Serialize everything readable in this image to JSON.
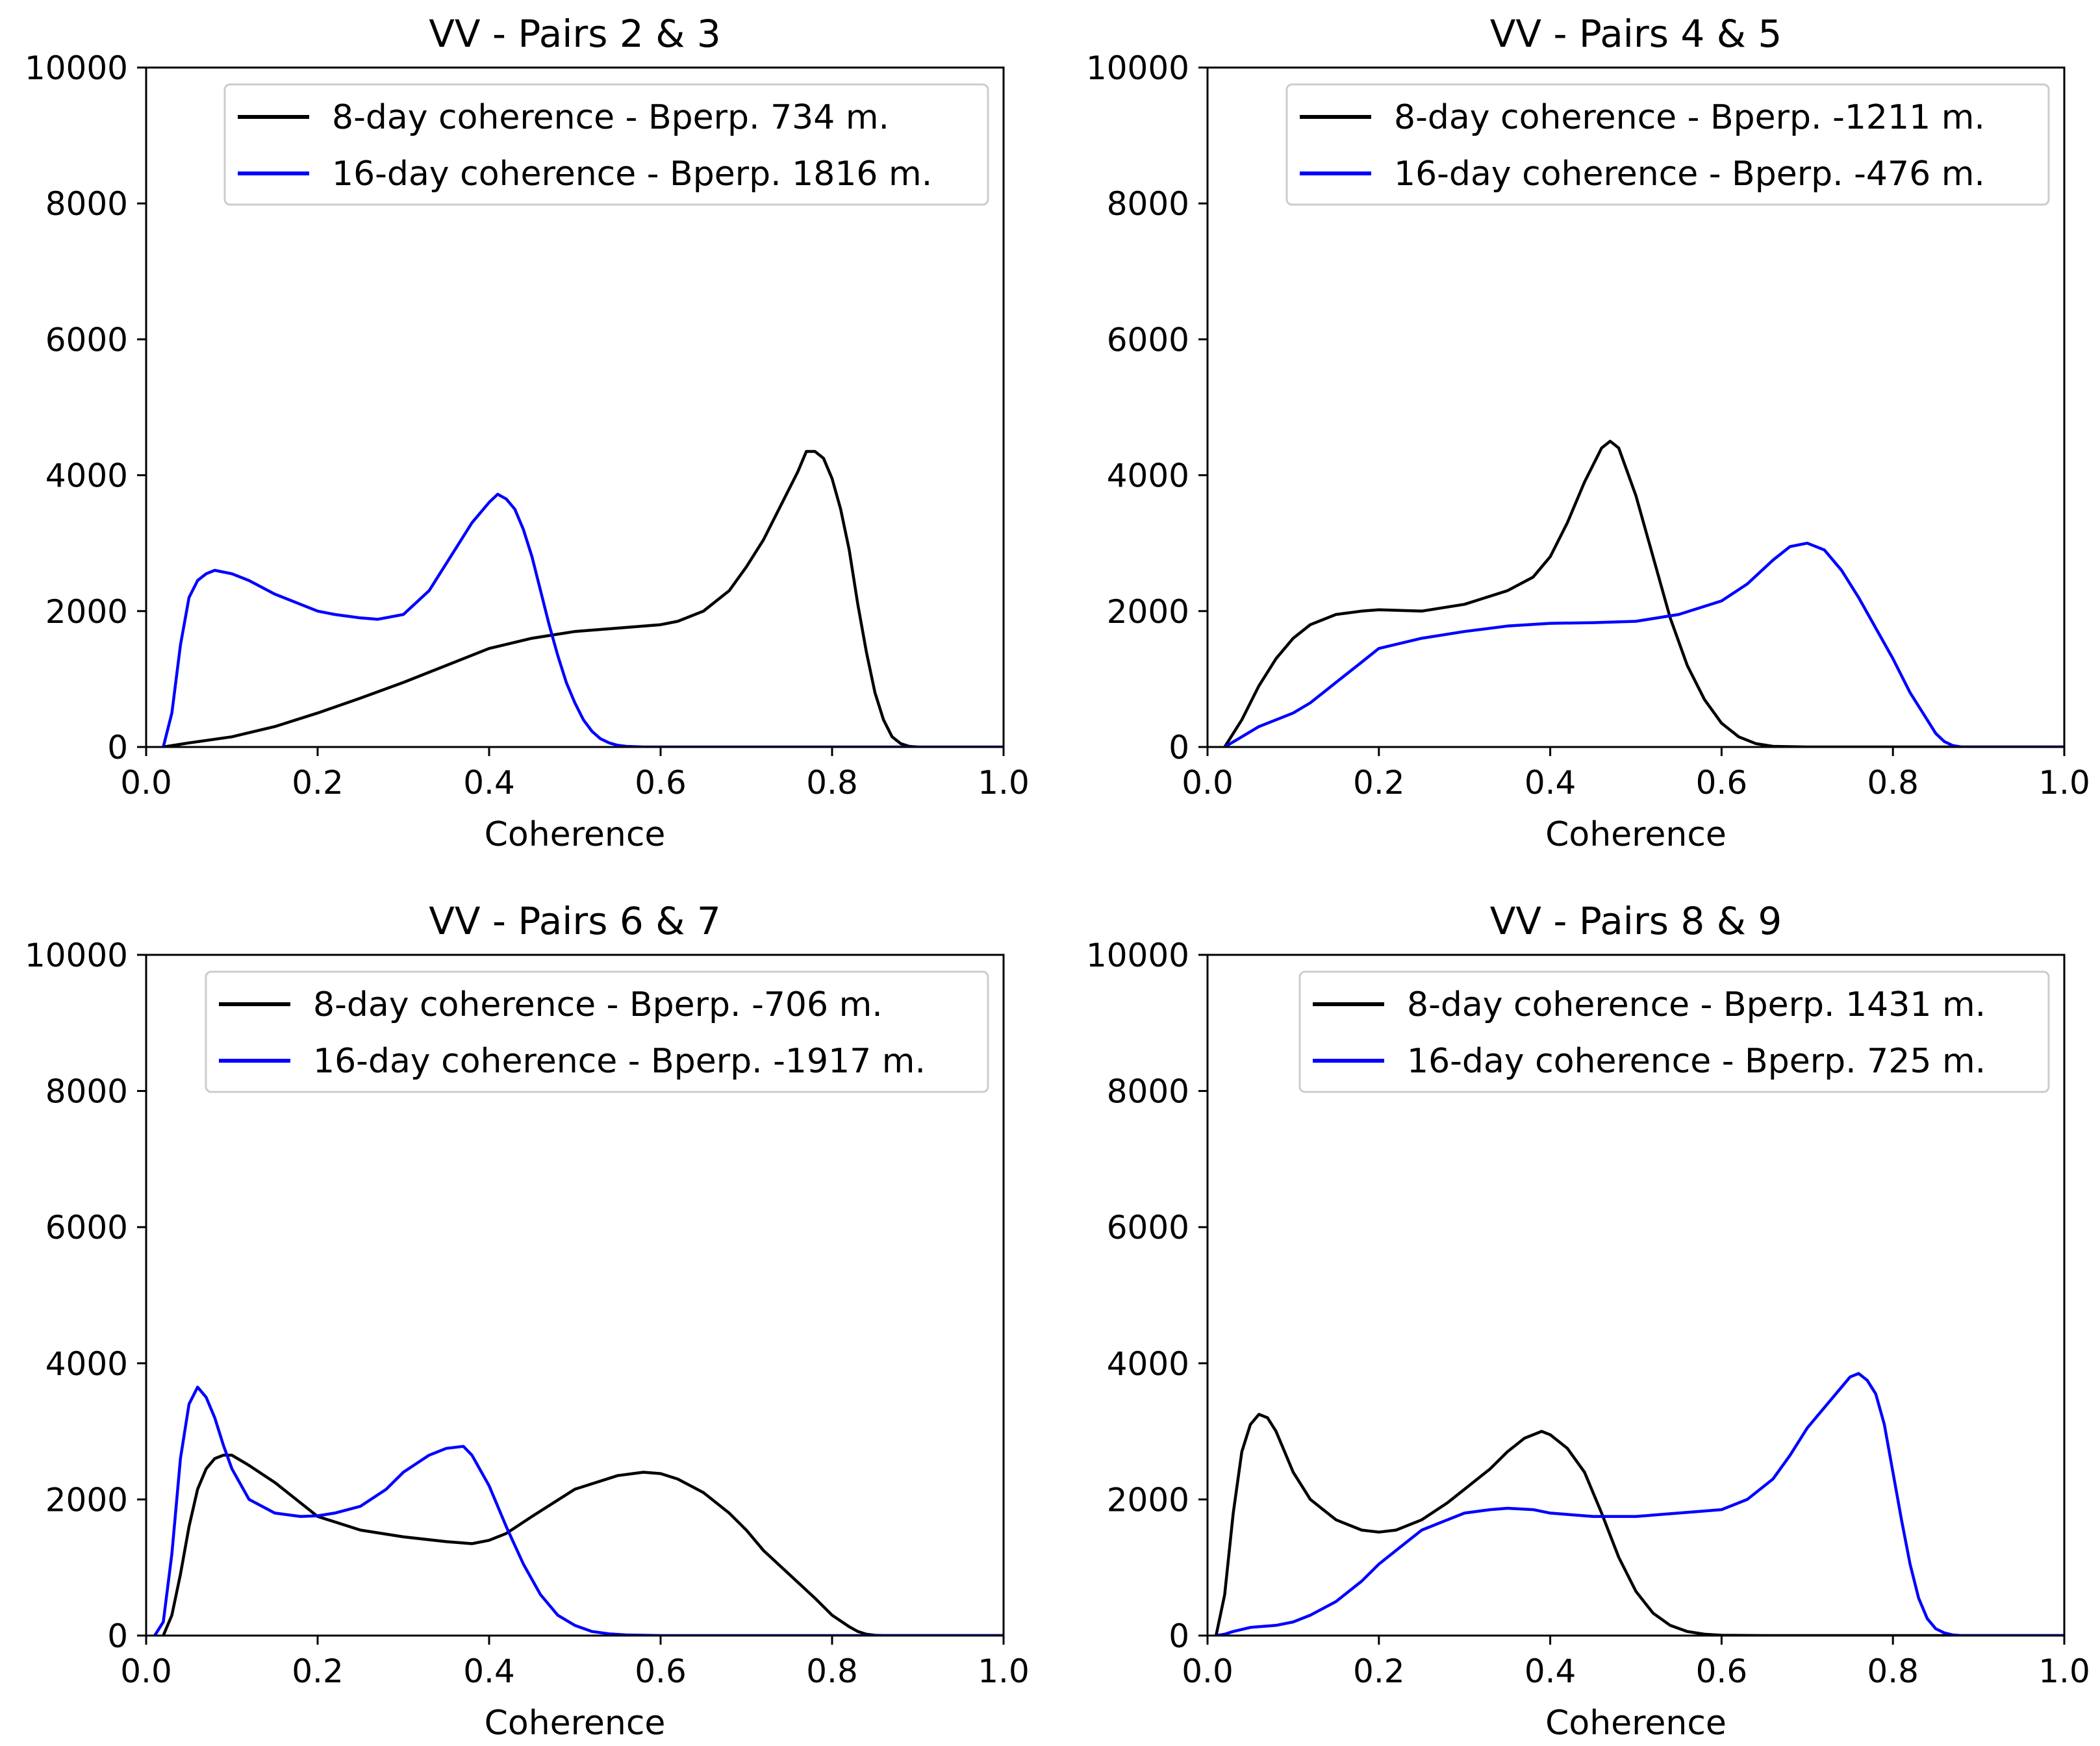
{
  "chart_data": [
    {
      "type": "line",
      "title": "VV  - Pairs 2 & 3",
      "xlabel": "Coherence",
      "ylabel": "",
      "xlim": [
        0.0,
        1.0
      ],
      "ylim": [
        0,
        10000
      ],
      "xticks": [
        "0.0",
        "0.2",
        "0.4",
        "0.6",
        "0.8",
        "1.0"
      ],
      "yticks": [
        "0",
        "2000",
        "4000",
        "6000",
        "8000",
        "10000"
      ],
      "legend_position": "top-right",
      "series": [
        {
          "name": "8-day coherence - Bperp. 734 m.",
          "color": "#000000",
          "x": [
            0.02,
            0.05,
            0.1,
            0.15,
            0.2,
            0.25,
            0.3,
            0.35,
            0.4,
            0.45,
            0.5,
            0.55,
            0.6,
            0.62,
            0.65,
            0.68,
            0.7,
            0.72,
            0.74,
            0.76,
            0.77,
            0.78,
            0.79,
            0.8,
            0.81,
            0.82,
            0.83,
            0.84,
            0.85,
            0.86,
            0.87,
            0.88,
            0.89,
            0.9
          ],
          "y": [
            0,
            60,
            150,
            300,
            500,
            720,
            950,
            1200,
            1450,
            1600,
            1700,
            1750,
            1800,
            1850,
            2000,
            2300,
            2650,
            3050,
            3550,
            4050,
            4350,
            4350,
            4250,
            3950,
            3500,
            2900,
            2100,
            1400,
            800,
            400,
            150,
            50,
            10,
            0
          ]
        },
        {
          "name": "16-day coherence - Bperp. 1816 m.",
          "color": "#0000ff",
          "x": [
            0.02,
            0.03,
            0.04,
            0.05,
            0.06,
            0.07,
            0.08,
            0.1,
            0.12,
            0.15,
            0.18,
            0.2,
            0.22,
            0.25,
            0.27,
            0.3,
            0.33,
            0.36,
            0.38,
            0.4,
            0.41,
            0.42,
            0.43,
            0.44,
            0.45,
            0.46,
            0.47,
            0.48,
            0.49,
            0.5,
            0.51,
            0.52,
            0.53,
            0.54,
            0.55,
            0.56,
            0.58,
            0.6,
            0.7,
            1.0
          ],
          "y": [
            0,
            500,
            1500,
            2200,
            2450,
            2550,
            2600,
            2550,
            2450,
            2250,
            2100,
            2000,
            1950,
            1900,
            1880,
            1950,
            2300,
            2900,
            3300,
            3600,
            3720,
            3650,
            3500,
            3200,
            2800,
            2300,
            1800,
            1350,
            950,
            650,
            400,
            230,
            120,
            60,
            25,
            10,
            0,
            0,
            0,
            0
          ]
        }
      ]
    },
    {
      "type": "line",
      "title": "VV  - Pairs 4 & 5",
      "xlabel": "Coherence",
      "ylabel": "",
      "xlim": [
        0.0,
        1.0
      ],
      "ylim": [
        0,
        10000
      ],
      "xticks": [
        "0.0",
        "0.2",
        "0.4",
        "0.6",
        "0.8",
        "1.0"
      ],
      "yticks": [
        "0",
        "2000",
        "4000",
        "6000",
        "8000",
        "10000"
      ],
      "legend_position": "top-right",
      "series": [
        {
          "name": "8-day coherence - Bperp. -1211 m.",
          "color": "#000000",
          "x": [
            0.02,
            0.04,
            0.06,
            0.08,
            0.1,
            0.12,
            0.15,
            0.18,
            0.2,
            0.25,
            0.3,
            0.35,
            0.38,
            0.4,
            0.42,
            0.44,
            0.46,
            0.47,
            0.48,
            0.5,
            0.52,
            0.54,
            0.56,
            0.58,
            0.6,
            0.62,
            0.64,
            0.66,
            0.7,
            1.0
          ],
          "y": [
            0,
            400,
            900,
            1300,
            1600,
            1800,
            1950,
            2000,
            2020,
            2000,
            2100,
            2300,
            2500,
            2800,
            3300,
            3900,
            4400,
            4500,
            4400,
            3700,
            2800,
            1900,
            1200,
            700,
            350,
            150,
            50,
            10,
            0,
            0
          ]
        },
        {
          "name": "16-day coherence - Bperp. -476 m.",
          "color": "#0000ff",
          "x": [
            0.02,
            0.04,
            0.06,
            0.08,
            0.1,
            0.12,
            0.15,
            0.18,
            0.2,
            0.25,
            0.3,
            0.35,
            0.4,
            0.45,
            0.5,
            0.55,
            0.6,
            0.63,
            0.66,
            0.68,
            0.7,
            0.72,
            0.74,
            0.76,
            0.78,
            0.8,
            0.82,
            0.84,
            0.85,
            0.86,
            0.87,
            0.88,
            1.0
          ],
          "y": [
            0,
            150,
            300,
            400,
            500,
            650,
            950,
            1250,
            1450,
            1600,
            1700,
            1780,
            1820,
            1830,
            1850,
            1950,
            2150,
            2400,
            2750,
            2950,
            3000,
            2900,
            2600,
            2200,
            1750,
            1300,
            800,
            400,
            200,
            80,
            20,
            0,
            0
          ]
        }
      ]
    },
    {
      "type": "line",
      "title": "VV  - Pairs 6 & 7",
      "xlabel": "Coherence",
      "ylabel": "",
      "xlim": [
        0.0,
        1.0
      ],
      "ylim": [
        0,
        10000
      ],
      "xticks": [
        "0.0",
        "0.2",
        "0.4",
        "0.6",
        "0.8",
        "1.0"
      ],
      "yticks": [
        "0",
        "2000",
        "4000",
        "6000",
        "8000",
        "10000"
      ],
      "legend_position": "top-right",
      "series": [
        {
          "name": "8-day coherence - Bperp. -706 m.",
          "color": "#000000",
          "x": [
            0.02,
            0.03,
            0.04,
            0.05,
            0.06,
            0.07,
            0.08,
            0.09,
            0.1,
            0.12,
            0.15,
            0.18,
            0.2,
            0.25,
            0.3,
            0.35,
            0.38,
            0.4,
            0.42,
            0.45,
            0.5,
            0.55,
            0.58,
            0.6,
            0.62,
            0.65,
            0.68,
            0.7,
            0.72,
            0.75,
            0.78,
            0.8,
            0.82,
            0.83,
            0.84,
            0.85,
            0.86,
            1.0
          ],
          "y": [
            0,
            300,
            900,
            1600,
            2150,
            2450,
            2600,
            2650,
            2650,
            2500,
            2250,
            1950,
            1750,
            1550,
            1450,
            1380,
            1350,
            1400,
            1500,
            1750,
            2150,
            2350,
            2400,
            2380,
            2300,
            2100,
            1800,
            1550,
            1250,
            900,
            550,
            300,
            130,
            60,
            20,
            5,
            0,
            0
          ]
        },
        {
          "name": "16-day coherence - Bperp. -1917 m.",
          "color": "#0000ff",
          "x": [
            0.01,
            0.02,
            0.03,
            0.04,
            0.05,
            0.06,
            0.07,
            0.08,
            0.09,
            0.1,
            0.12,
            0.15,
            0.18,
            0.2,
            0.22,
            0.25,
            0.28,
            0.3,
            0.33,
            0.35,
            0.37,
            0.38,
            0.4,
            0.42,
            0.44,
            0.46,
            0.48,
            0.5,
            0.52,
            0.54,
            0.56,
            0.58,
            0.6,
            0.65,
            1.0
          ],
          "y": [
            0,
            200,
            1200,
            2600,
            3400,
            3650,
            3500,
            3200,
            2800,
            2450,
            2000,
            1800,
            1750,
            1760,
            1800,
            1900,
            2150,
            2400,
            2650,
            2750,
            2780,
            2650,
            2200,
            1600,
            1050,
            600,
            300,
            150,
            60,
            25,
            10,
            5,
            0,
            0,
            0
          ]
        }
      ]
    },
    {
      "type": "line",
      "title": "VV  - Pairs 8 & 9",
      "xlabel": "Coherence",
      "ylabel": "",
      "xlim": [
        0.0,
        1.0
      ],
      "ylim": [
        0,
        10000
      ],
      "xticks": [
        "0.0",
        "0.2",
        "0.4",
        "0.6",
        "0.8",
        "1.0"
      ],
      "yticks": [
        "0",
        "2000",
        "4000",
        "6000",
        "8000",
        "10000"
      ],
      "legend_position": "top-right",
      "series": [
        {
          "name": "8-day coherence - Bperp. 1431 m.",
          "color": "#000000",
          "x": [
            0.01,
            0.02,
            0.03,
            0.04,
            0.05,
            0.06,
            0.07,
            0.08,
            0.09,
            0.1,
            0.12,
            0.15,
            0.18,
            0.2,
            0.22,
            0.25,
            0.28,
            0.3,
            0.33,
            0.35,
            0.37,
            0.39,
            0.4,
            0.42,
            0.44,
            0.46,
            0.48,
            0.5,
            0.52,
            0.54,
            0.56,
            0.58,
            0.6,
            0.65,
            1.0
          ],
          "y": [
            0,
            600,
            1800,
            2700,
            3100,
            3250,
            3200,
            3000,
            2700,
            2400,
            2000,
            1700,
            1550,
            1520,
            1550,
            1700,
            1950,
            2150,
            2450,
            2700,
            2900,
            3000,
            2950,
            2750,
            2400,
            1800,
            1150,
            650,
            330,
            150,
            60,
            20,
            5,
            0,
            0
          ]
        },
        {
          "name": "16-day coherence - Bperp. 725 m.",
          "color": "#0000ff",
          "x": [
            0.01,
            0.02,
            0.03,
            0.05,
            0.08,
            0.1,
            0.12,
            0.15,
            0.18,
            0.2,
            0.23,
            0.25,
            0.28,
            0.3,
            0.33,
            0.35,
            0.38,
            0.4,
            0.45,
            0.5,
            0.55,
            0.6,
            0.63,
            0.66,
            0.68,
            0.7,
            0.72,
            0.74,
            0.75,
            0.76,
            0.77,
            0.78,
            0.79,
            0.8,
            0.81,
            0.82,
            0.83,
            0.84,
            0.85,
            0.86,
            0.87,
            0.88,
            1.0
          ],
          "y": [
            0,
            20,
            60,
            120,
            150,
            200,
            300,
            500,
            800,
            1050,
            1350,
            1550,
            1700,
            1800,
            1850,
            1870,
            1850,
            1800,
            1750,
            1750,
            1800,
            1850,
            2000,
            2300,
            2650,
            3050,
            3350,
            3650,
            3800,
            3850,
            3750,
            3550,
            3100,
            2400,
            1700,
            1050,
            550,
            250,
            100,
            40,
            10,
            0,
            0
          ]
        }
      ]
    }
  ]
}
